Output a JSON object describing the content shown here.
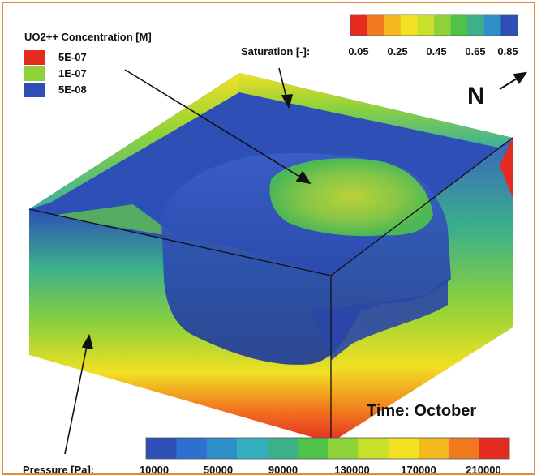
{
  "concentration_legend": {
    "title": "UO2++ Concentration [M]",
    "items": [
      {
        "label": "5E-07",
        "color": "#e52a20"
      },
      {
        "label": "1E-07",
        "color": "#8fd23a"
      },
      {
        "label": "5E-08",
        "color": "#2e4fb5"
      }
    ]
  },
  "saturation_colorbar": {
    "label": "Saturation [-]:",
    "ticks": [
      "0.05",
      "0.25",
      "0.45",
      "0.65",
      "0.85"
    ],
    "colors": [
      "#e52a20",
      "#f27a1e",
      "#f5b81d",
      "#f2e023",
      "#c8e02a",
      "#8fd23a",
      "#4fc24a",
      "#3bb08a",
      "#2f8fc8",
      "#2e4fb5"
    ]
  },
  "north_label": "N",
  "time_label": "Time: October",
  "pressure_colorbar": {
    "label": "Pressure [Pa]:",
    "ticks": [
      "10000",
      "50000",
      "90000",
      "130000",
      "170000",
      "210000"
    ],
    "colors": [
      "#2e4fb5",
      "#2f6fd0",
      "#2f8fc8",
      "#35b0c0",
      "#3bb08a",
      "#4fc24a",
      "#8fd23a",
      "#c8e02a",
      "#f2e023",
      "#f5b81d",
      "#f27a1e",
      "#e52a20"
    ]
  }
}
